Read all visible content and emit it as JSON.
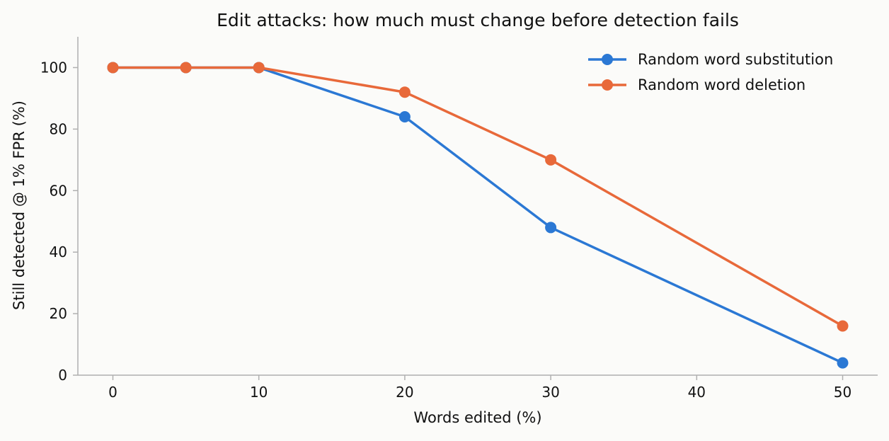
{
  "chart_data": {
    "type": "line",
    "title": "Edit attacks: how much must change before detection fails",
    "xlabel": "Words edited (%)",
    "ylabel": "Still detected @ 1% FPR (%)",
    "x": [
      0,
      5,
      10,
      20,
      30,
      50
    ],
    "series": [
      {
        "name": "Random word substitution",
        "color": "#2b78d4",
        "values": [
          100,
          100,
          100,
          84,
          48,
          4
        ]
      },
      {
        "name": "Random word deletion",
        "color": "#e8693a",
        "values": [
          100,
          100,
          100,
          92,
          70,
          16
        ]
      }
    ],
    "xlim": [
      -2.4,
      52.4
    ],
    "ylim": [
      0,
      110
    ],
    "xticks": [
      0,
      10,
      20,
      30,
      40,
      50
    ],
    "yticks": [
      0,
      20,
      40,
      60,
      80,
      100
    ],
    "grid": false,
    "legend_position": "top-right"
  }
}
